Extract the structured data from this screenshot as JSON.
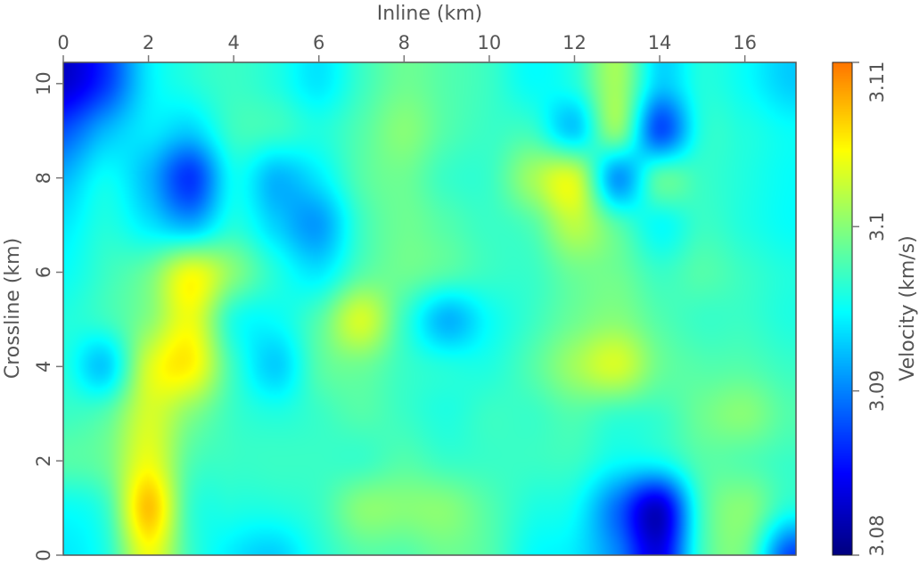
{
  "chart_data": {
    "type": "heatmap",
    "title": "",
    "xlabel": "Inline (km)",
    "ylabel": "Crossline (km)",
    "xlim": [
      0,
      17.2
    ],
    "ylim": [
      0,
      10.45
    ],
    "x_axis_position": "top",
    "xticks": [
      0,
      2,
      4,
      6,
      8,
      10,
      12,
      14,
      16
    ],
    "yticks": [
      0,
      2,
      4,
      6,
      8,
      10
    ],
    "grid": false,
    "colorbar": {
      "label": "Velocity (km/s)",
      "range": [
        3.08,
        3.11
      ],
      "ticks": [
        "3.08",
        "3.09",
        "3.1",
        "3.11"
      ],
      "placement": "right",
      "colormap": "jet (truncated at orange)"
    },
    "grid_x_km": [
      0,
      1,
      2,
      3,
      4,
      5,
      6,
      7,
      8,
      9,
      10,
      11,
      12,
      13,
      14,
      15,
      16,
      17
    ],
    "grid_y_km": [
      10,
      9,
      8,
      7,
      6,
      5,
      4,
      3,
      2,
      1,
      0
    ],
    "values": [
      [
        3.083,
        3.087,
        3.094,
        3.096,
        3.097,
        3.096,
        3.094,
        3.097,
        3.099,
        3.098,
        3.097,
        3.095,
        3.096,
        3.101,
        3.093,
        3.096,
        3.095,
        3.093
      ],
      [
        3.088,
        3.092,
        3.094,
        3.093,
        3.097,
        3.097,
        3.096,
        3.098,
        3.1,
        3.098,
        3.097,
        3.097,
        3.093,
        3.1,
        3.088,
        3.096,
        3.096,
        3.095
      ],
      [
        3.092,
        3.095,
        3.092,
        3.087,
        3.095,
        3.092,
        3.094,
        3.098,
        3.099,
        3.097,
        3.097,
        3.101,
        3.103,
        3.091,
        3.098,
        3.097,
        3.096,
        3.095
      ],
      [
        3.094,
        3.096,
        3.094,
        3.092,
        3.096,
        3.093,
        3.091,
        3.097,
        3.099,
        3.098,
        3.097,
        3.098,
        3.102,
        3.098,
        3.095,
        3.097,
        3.096,
        3.095
      ],
      [
        3.095,
        3.097,
        3.099,
        3.104,
        3.1,
        3.096,
        3.094,
        3.098,
        3.099,
        3.098,
        3.097,
        3.097,
        3.099,
        3.099,
        3.097,
        3.098,
        3.097,
        3.096
      ],
      [
        3.096,
        3.097,
        3.1,
        3.104,
        3.096,
        3.095,
        3.098,
        3.103,
        3.097,
        3.092,
        3.095,
        3.097,
        3.099,
        3.1,
        3.098,
        3.097,
        3.097,
        3.096
      ],
      [
        3.096,
        3.093,
        3.103,
        3.105,
        3.097,
        3.093,
        3.098,
        3.099,
        3.097,
        3.096,
        3.096,
        3.098,
        3.101,
        3.103,
        3.099,
        3.098,
        3.098,
        3.097
      ],
      [
        3.097,
        3.098,
        3.103,
        3.1,
        3.097,
        3.096,
        3.097,
        3.098,
        3.097,
        3.096,
        3.097,
        3.097,
        3.098,
        3.097,
        3.097,
        3.099,
        3.1,
        3.098
      ],
      [
        3.098,
        3.099,
        3.104,
        3.098,
        3.097,
        3.097,
        3.097,
        3.097,
        3.098,
        3.097,
        3.097,
        3.097,
        3.097,
        3.095,
        3.095,
        3.098,
        3.098,
        3.097
      ],
      [
        3.095,
        3.097,
        3.107,
        3.097,
        3.096,
        3.096,
        3.097,
        3.1,
        3.1,
        3.1,
        3.098,
        3.096,
        3.095,
        3.089,
        3.083,
        3.097,
        3.1,
        3.096
      ],
      [
        3.094,
        3.096,
        3.104,
        3.097,
        3.094,
        3.093,
        3.096,
        3.098,
        3.098,
        3.099,
        3.098,
        3.095,
        3.094,
        3.09,
        3.084,
        3.097,
        3.099,
        3.088
      ]
    ]
  }
}
